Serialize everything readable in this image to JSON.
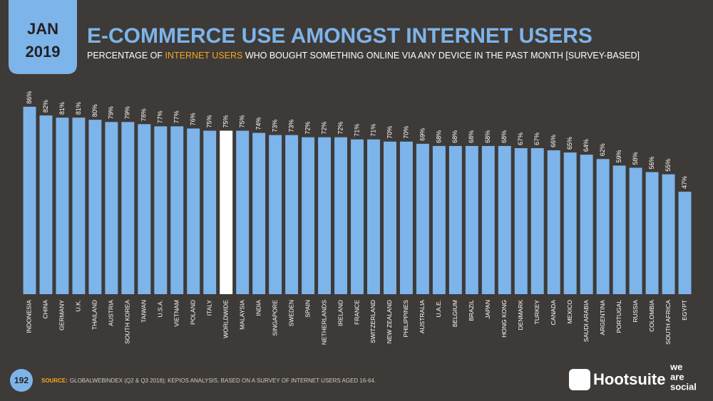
{
  "header": {
    "month": "JAN",
    "year": "2019"
  },
  "chart_data": {
    "type": "bar",
    "title": "E-COMMERCE USE AMONGST INTERNET USERS",
    "subtitle": [
      "PERCENTAGE OF ",
      "INTERNET USERS",
      " WHO BOUGHT SOMETHING ONLINE VIA ANY DEVICE IN THE PAST MONTH [SURVEY-BASED]"
    ],
    "categories": [
      "INDONESIA",
      "CHINA",
      "GERMANY",
      "U.K.",
      "THAILAND",
      "AUSTRIA",
      "SOUTH KOREA",
      "TAIWAN",
      "U.S.A.",
      "VIETNAM",
      "POLAND",
      "ITALY",
      "WORLDWIDE",
      "MALAYSIA",
      "INDIA",
      "SINGAPORE",
      "SWEDEN",
      "SPAIN",
      "NETHERLANDS",
      "IRELAND",
      "FRANCE",
      "SWITZERLAND",
      "NEW ZEALAND",
      "PHILIPPINES",
      "AUSTRALIA",
      "U.A.E.",
      "BELGIUM",
      "BRAZIL",
      "JAPAN",
      "HONG KONG",
      "DENMARK",
      "TURKEY",
      "CANADA",
      "MEXICO",
      "SAUDI ARABIA",
      "ARGENTINA",
      "PORTUGAL",
      "RUSSIA",
      "COLOMBIA",
      "SOUTH AFRICA",
      "EGYPT"
    ],
    "values": [
      86,
      82,
      81,
      81,
      80,
      79,
      79,
      78,
      77,
      77,
      76,
      75,
      75,
      75,
      74,
      73,
      73,
      72,
      72,
      72,
      71,
      71,
      70,
      70,
      69,
      68,
      68,
      68,
      68,
      68,
      67,
      67,
      66,
      65,
      64,
      62,
      59,
      58,
      56,
      55,
      47
    ],
    "value_labels": [
      "86%",
      "82%",
      "81%",
      "81%",
      "80%",
      "79%",
      "79%",
      "78%",
      "77%",
      "77%",
      "76%",
      "75%",
      "75%",
      "75%",
      "74%",
      "73%",
      "73%",
      "72%",
      "72%",
      "72%",
      "71%",
      "71%",
      "70%",
      "70%",
      "69%",
      "68%",
      "68%",
      "68%",
      "68%",
      "68%",
      "67%",
      "67%",
      "66%",
      "65%",
      "64%",
      "62%",
      "59%",
      "58%",
      "56%",
      "55%",
      "47%"
    ],
    "colors": [
      "#7db4ea",
      "#7db4ea",
      "#7db4ea",
      "#7db4ea",
      "#7db4ea",
      "#7db4ea",
      "#7db4ea",
      "#7db4ea",
      "#7db4ea",
      "#7db4ea",
      "#7db4ea",
      "#7db4ea",
      "#ffffff",
      "#7db4ea",
      "#7db4ea",
      "#7db4ea",
      "#7db4ea",
      "#7db4ea",
      "#7db4ea",
      "#7db4ea",
      "#7db4ea",
      "#7db4ea",
      "#7db4ea",
      "#7db4ea",
      "#7db4ea",
      "#7db4ea",
      "#7db4ea",
      "#7db4ea",
      "#7db4ea",
      "#7db4ea",
      "#7db4ea",
      "#7db4ea",
      "#7db4ea",
      "#7db4ea",
      "#7db4ea",
      "#7db4ea",
      "#7db4ea",
      "#7db4ea",
      "#7db4ea",
      "#7db4ea",
      "#7db4ea"
    ],
    "ylim": [
      0,
      100
    ]
  },
  "footer": {
    "page": "192",
    "source_label": "SOURCE:",
    "source": "GLOBALWEBINDEX (Q2 & Q3 2018); KEPIOS ANALYSIS. BASED ON A SURVEY OF INTERNET USERS AGED 16-64.",
    "logo": "Hootsuite",
    "logo2": [
      "we",
      "are",
      "social"
    ]
  }
}
